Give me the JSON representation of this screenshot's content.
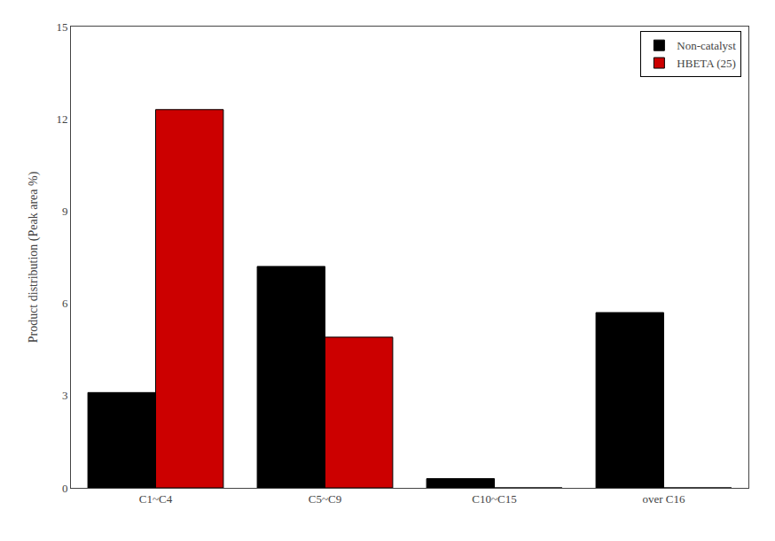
{
  "chart_data": {
    "type": "bar",
    "categories": [
      "C1~C4",
      "C5~C9",
      "C10~C15",
      "over C16"
    ],
    "series": [
      {
        "name": "Non-catalyst",
        "color": "#000000",
        "values": [
          3.1,
          7.2,
          0.3,
          5.7
        ]
      },
      {
        "name": "HBETA (25)",
        "color": "#cc0000",
        "values": [
          12.3,
          4.9,
          0.0,
          0.0
        ]
      }
    ],
    "ylabel": "Product distribution (Peak area %)",
    "ylim": [
      0,
      15
    ],
    "yticks": [
      0,
      3,
      6,
      9,
      12,
      15
    ],
    "grid": false,
    "legend": "upper right"
  }
}
